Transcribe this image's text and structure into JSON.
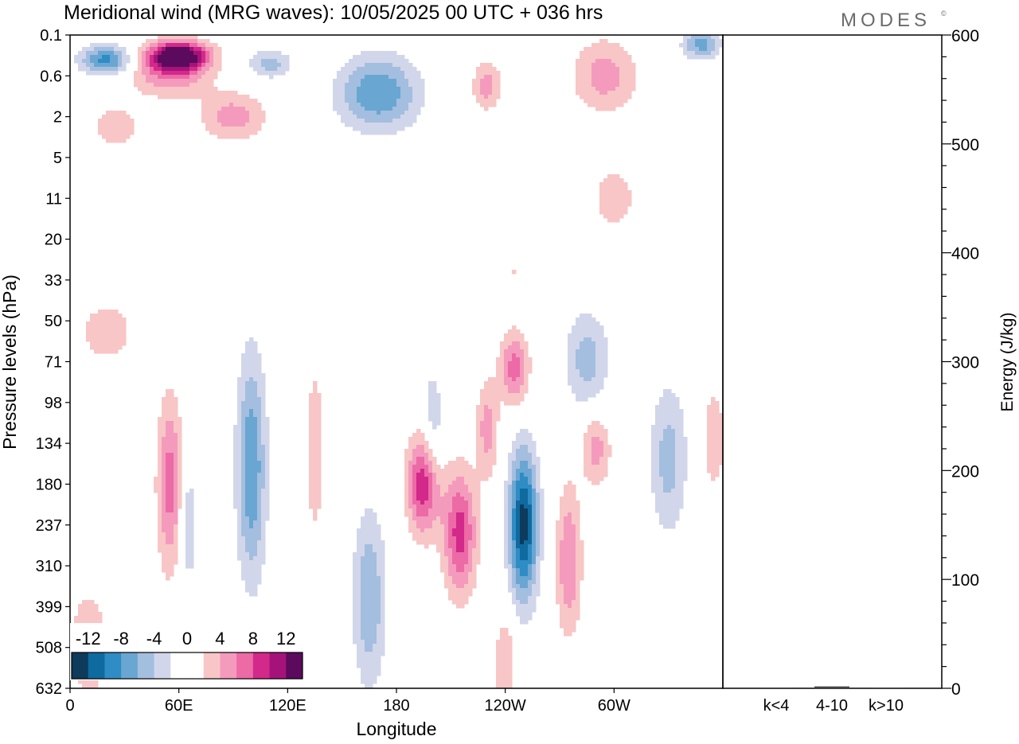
{
  "title": "Meridional wind (MRG waves):  10/05/2025  00 UTC  + 036 hrs",
  "logo_text": "MODES",
  "logo_mark": "©",
  "chart_data": [
    {
      "type": "heatmap",
      "xlabel": "Longitude",
      "ylabel": "Pressure levels (hPa)",
      "x_ticks": [
        "0",
        "60E",
        "120E",
        "180",
        "120W",
        "60W"
      ],
      "x_tick_values": [
        0,
        60,
        120,
        180,
        240,
        300
      ],
      "xlim": [
        0,
        360
      ],
      "y_ticks": [
        "0.1",
        "0.6",
        "2",
        "5",
        "11",
        "20",
        "33",
        "50",
        "71",
        "98",
        "134",
        "180",
        "237",
        "310",
        "399",
        "508",
        "632"
      ],
      "colorbar": {
        "labels": [
          "-12",
          "-8",
          "-4",
          "0",
          "4",
          "8",
          "12"
        ],
        "label_values": [
          -12,
          -8,
          -4,
          0,
          4,
          8,
          12
        ],
        "colors": [
          "#0e3a5c",
          "#0f6aa0",
          "#2f8cc4",
          "#6aa6d2",
          "#a4bedf",
          "#d2d6ea",
          "#ffffff",
          "#ffffff",
          "#f8c6c6",
          "#f49bbd",
          "#ec6aa6",
          "#d2298a",
          "#a5137a",
          "#5c0a5e"
        ]
      },
      "blobs": [
        {
          "lon": 20,
          "p": 0.3,
          "v": -9,
          "dx": 14,
          "dp": 0.1
        },
        {
          "lon": 60,
          "p": 0.25,
          "v": 14,
          "dx": 16,
          "dp": 0.1
        },
        {
          "lon": 55,
          "p": 0.5,
          "v": 6,
          "dx": 22,
          "dp": 0.2
        },
        {
          "lon": 110,
          "p": 0.35,
          "v": -5,
          "dx": 12,
          "dp": 0.1
        },
        {
          "lon": 170,
          "p": 1.0,
          "v": -8,
          "dx": 22,
          "dp": 0.3
        },
        {
          "lon": 230,
          "p": 0.8,
          "v": 5,
          "dx": 8,
          "dp": 0.2
        },
        {
          "lon": 295,
          "p": 0.6,
          "v": 5,
          "dx": 18,
          "dp": 0.3
        },
        {
          "lon": 348,
          "p": 0.15,
          "v": -7,
          "dx": 10,
          "dp": 0.1
        },
        {
          "lon": 90,
          "p": 2,
          "v": 5,
          "dx": 18,
          "dp": 0.2
        },
        {
          "lon": 25,
          "p": 2.5,
          "v": 3,
          "dx": 16,
          "dp": 0.2
        },
        {
          "lon": 300,
          "p": 11,
          "v": 3,
          "dx": 14,
          "dp": 0.3
        },
        {
          "lon": 245,
          "p": 30,
          "v": 2,
          "dx": 10,
          "dp": 0.2
        },
        {
          "lon": 20,
          "p": 55,
          "v": 3,
          "dx": 18,
          "dp": 0.3
        },
        {
          "lon": 55,
          "p": 180,
          "v": 7,
          "dx": 7,
          "dp": 0.7
        },
        {
          "lon": 65,
          "p": 237,
          "v": -4,
          "dx": 5,
          "dp": 0.5
        },
        {
          "lon": 100,
          "p": 160,
          "v": -8,
          "dx": 8,
          "dp": 0.9
        },
        {
          "lon": 135,
          "p": 140,
          "v": 3,
          "dx": 6,
          "dp": 0.9
        },
        {
          "lon": 165,
          "p": 380,
          "v": -6,
          "dx": 9,
          "dp": 0.7
        },
        {
          "lon": 195,
          "p": 180,
          "v": 10,
          "dx": 9,
          "dp": 0.4
        },
        {
          "lon": 215,
          "p": 250,
          "v": 9,
          "dx": 9,
          "dp": 0.5
        },
        {
          "lon": 200,
          "p": 120,
          "v": -4,
          "dx": 6,
          "dp": 0.5
        },
        {
          "lon": 250,
          "p": 237,
          "v": -13,
          "dx": 8,
          "dp": 0.6
        },
        {
          "lon": 245,
          "p": 75,
          "v": 7,
          "dx": 8,
          "dp": 0.3
        },
        {
          "lon": 275,
          "p": 300,
          "v": 6,
          "dx": 7,
          "dp": 0.6
        },
        {
          "lon": 290,
          "p": 140,
          "v": 5,
          "dx": 8,
          "dp": 0.3
        },
        {
          "lon": 330,
          "p": 150,
          "v": -5,
          "dx": 10,
          "dp": 0.6
        },
        {
          "lon": 285,
          "p": 70,
          "v": -5,
          "dx": 12,
          "dp": 0.4
        },
        {
          "lon": 355,
          "p": 130,
          "v": 4,
          "dx": 6,
          "dp": 0.4
        },
        {
          "lon": 230,
          "p": 120,
          "v": 5,
          "dx": 6,
          "dp": 0.4
        },
        {
          "lon": 240,
          "p": 550,
          "v": 4,
          "dx": 6,
          "dp": 0.4
        },
        {
          "lon": 10,
          "p": 500,
          "v": 3,
          "dx": 14,
          "dp": 0.6
        }
      ]
    },
    {
      "type": "bar",
      "categories": [
        "k<4",
        "4-10",
        "k>10"
      ],
      "values": [
        0,
        1,
        0
      ],
      "ylabel": "Energy (J/kg)",
      "ylim": [
        0,
        600
      ],
      "y_ticks": [
        "0",
        "100",
        "200",
        "300",
        "400",
        "500",
        "600"
      ],
      "y_tick_values": [
        0,
        100,
        200,
        300,
        400,
        500,
        600
      ]
    }
  ]
}
